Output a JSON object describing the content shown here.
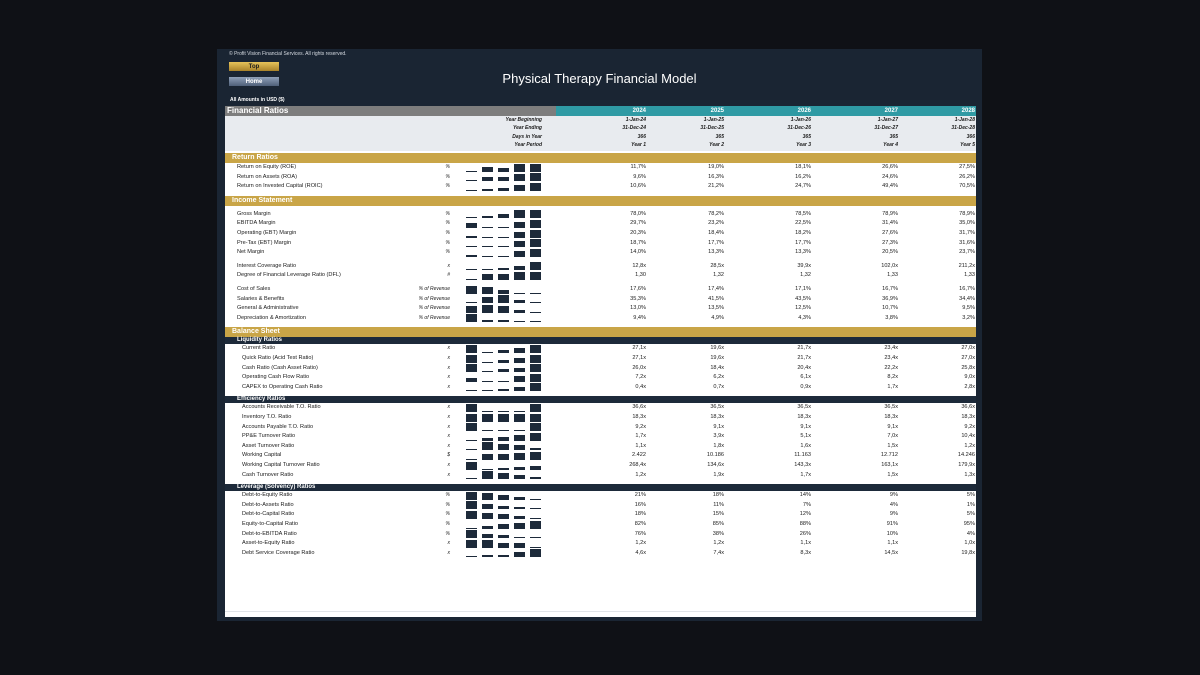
{
  "copyright": "© Profit Vision Financial Services. All rights reserved.",
  "buttons": {
    "top": "Top",
    "home": "Home"
  },
  "title": "Physical Therapy Financial Model",
  "units": "All Amounts in  USD ($)",
  "header": {
    "section_title": "Financial Ratios",
    "years": [
      "2024",
      "2025",
      "2026",
      "2027",
      "2028"
    ],
    "meta": [
      {
        "label": "Year Beginning",
        "values": [
          "1-Jan-24",
          "1-Jan-25",
          "1-Jan-26",
          "1-Jan-27",
          "1-Jan-28"
        ]
      },
      {
        "label": "Year Ending",
        "values": [
          "31-Dec-24",
          "31-Dec-25",
          "31-Dec-26",
          "31-Dec-27",
          "31-Dec-28"
        ]
      },
      {
        "label": "Days in Year",
        "values": [
          "366",
          "365",
          "365",
          "365",
          "366"
        ]
      },
      {
        "label": "Year Period",
        "values": [
          "Year 1",
          "Year 2",
          "Year 3",
          "Year 4",
          "Year 5"
        ]
      }
    ]
  },
  "sections": [
    {
      "type": "sec",
      "title": "Return Ratios"
    },
    {
      "type": "row",
      "label": "Return on Equity (ROE)",
      "unit": "%",
      "values": [
        "11,7%",
        "19,0%",
        "18,1%",
        "26,6%",
        "27,5%"
      ],
      "spark": [
        11.7,
        19.0,
        18.1,
        26.6,
        27.5
      ]
    },
    {
      "type": "row",
      "label": "Return on Assets (ROA)",
      "unit": "%",
      "values": [
        "9,6%",
        "16,3%",
        "16,2%",
        "24,6%",
        "26,2%"
      ],
      "spark": [
        9.6,
        16.3,
        16.2,
        24.6,
        26.2
      ]
    },
    {
      "type": "row",
      "label": "Return on Invested Capital (ROIC)",
      "unit": "%",
      "values": [
        "10,6%",
        "21,2%",
        "24,7%",
        "49,4%",
        "70,5%"
      ],
      "spark": [
        10.6,
        21.2,
        24.7,
        49.4,
        70.5
      ]
    },
    {
      "type": "gap"
    },
    {
      "type": "sec",
      "title": "Income Statement"
    },
    {
      "type": "gap"
    },
    {
      "type": "row",
      "label": "Gross Margin",
      "unit": "%",
      "values": [
        "78,0%",
        "78,2%",
        "78,5%",
        "78,9%",
        "78,9%"
      ],
      "spark": [
        78.0,
        78.2,
        78.5,
        78.9,
        78.9
      ]
    },
    {
      "type": "row",
      "label": "EBITDA Margin",
      "unit": "%",
      "values": [
        "29,7%",
        "23,2%",
        "22,5%",
        "31,4%",
        "35,0%"
      ],
      "spark": [
        29.7,
        23.2,
        22.5,
        31.4,
        35.0
      ]
    },
    {
      "type": "row",
      "label": "Operating (EBT) Margin",
      "unit": "%",
      "values": [
        "20,3%",
        "18,4%",
        "18,2%",
        "27,6%",
        "31,7%"
      ],
      "spark": [
        20.3,
        18.4,
        18.2,
        27.6,
        31.7
      ]
    },
    {
      "type": "row",
      "label": "Pre-Tax (EBT) Margin",
      "unit": "%",
      "values": [
        "18,7%",
        "17,7%",
        "17,7%",
        "27,3%",
        "31,6%"
      ],
      "spark": [
        18.7,
        17.7,
        17.7,
        27.3,
        31.6
      ]
    },
    {
      "type": "row",
      "label": "Net Margin",
      "unit": "%",
      "values": [
        "14,0%",
        "13,3%",
        "13,3%",
        "20,5%",
        "23,7%"
      ],
      "spark": [
        14.0,
        13.3,
        13.3,
        20.5,
        23.7
      ]
    },
    {
      "type": "gap"
    },
    {
      "type": "row",
      "label": "Interest Coverage Ratio",
      "unit": "x",
      "values": [
        "12,8x",
        "28,5x",
        "39,9x",
        "102,0x",
        "211,2x"
      ],
      "spark": [
        12.8,
        28.5,
        39.9,
        102.0,
        211.2
      ]
    },
    {
      "type": "row",
      "label": "Degree of Financial Leverage Ratio (DFL)",
      "unit": "#",
      "values": [
        "1,30",
        "1,32",
        "1,32",
        "1,33",
        "1,33"
      ],
      "spark": [
        1.3,
        1.32,
        1.32,
        1.33,
        1.33
      ]
    },
    {
      "type": "gap"
    },
    {
      "type": "row",
      "label": "Cost of Sales",
      "unit": "% of Revenue",
      "values": [
        "17,6%",
        "17,4%",
        "17,1%",
        "16,7%",
        "16,7%"
      ],
      "spark": [
        17.6,
        17.4,
        17.1,
        16.7,
        16.7
      ]
    },
    {
      "type": "row",
      "label": "Salaries & Benefits",
      "unit": "% of Revenue",
      "values": [
        "35,3%",
        "41,5%",
        "43,5%",
        "36,9%",
        "34,4%"
      ],
      "spark": [
        35.3,
        41.5,
        43.5,
        36.9,
        34.4
      ]
    },
    {
      "type": "row",
      "label": "General & Administrative",
      "unit": "% of Revenue",
      "values": [
        "13,0%",
        "13,5%",
        "12,5%",
        "10,7%",
        "9,5%"
      ],
      "spark": [
        13.0,
        13.5,
        12.5,
        10.7,
        9.5
      ]
    },
    {
      "type": "row",
      "label": "Depreciation & Amortization",
      "unit": "% of Revenue",
      "values": [
        "9,4%",
        "4,9%",
        "4,3%",
        "3,8%",
        "3,2%"
      ],
      "spark": [
        9.4,
        4.9,
        4.3,
        3.8,
        3.2
      ]
    },
    {
      "type": "gap"
    },
    {
      "type": "sec",
      "title": "Balance Sheet"
    },
    {
      "type": "sub",
      "title": "Liquidity Ratios"
    },
    {
      "type": "row",
      "l2": true,
      "label": "Current Ratio",
      "unit": "x",
      "values": [
        "27,1x",
        "19,6x",
        "21,7x",
        "23,4x",
        "27,0x"
      ],
      "spark": [
        27.1,
        19.6,
        21.7,
        23.4,
        27.0
      ]
    },
    {
      "type": "row",
      "l2": true,
      "label": "Quick Ratio (Acid Test Ratio)",
      "unit": "x",
      "values": [
        "27,1x",
        "19,6x",
        "21,7x",
        "23,4x",
        "27,0x"
      ],
      "spark": [
        27.1,
        19.6,
        21.7,
        23.4,
        27.0
      ]
    },
    {
      "type": "row",
      "l2": true,
      "label": "Cash Ratio (Cash Asset Ratio)",
      "unit": "x",
      "values": [
        "26,0x",
        "18,4x",
        "20,4x",
        "22,2x",
        "25,8x"
      ],
      "spark": [
        26.0,
        18.4,
        20.4,
        22.2,
        25.8
      ]
    },
    {
      "type": "row",
      "l2": true,
      "label": "Operating Cash Flow Ratio",
      "unit": "x",
      "values": [
        "7,2x",
        "6,2x",
        "6,1x",
        "8,2x",
        "9,0x"
      ],
      "spark": [
        7.2,
        6.2,
        6.1,
        8.2,
        9.0
      ]
    },
    {
      "type": "row",
      "l2": true,
      "label": "CAPEX to Operating Cash Ratio",
      "unit": "x",
      "values": [
        "0,4x",
        "0,7x",
        "0,9x",
        "1,7x",
        "2,8x"
      ],
      "spark": [
        0.4,
        0.7,
        0.9,
        1.7,
        2.8
      ]
    },
    {
      "type": "gap"
    },
    {
      "type": "sub",
      "title": "Efficiency Ratios"
    },
    {
      "type": "row",
      "l2": true,
      "label": "Accounts Receivable T.O. Ratio",
      "unit": "x",
      "values": [
        "36,6x",
        "36,5x",
        "36,5x",
        "36,5x",
        "36,6x"
      ],
      "spark": [
        36.6,
        36.5,
        36.5,
        36.5,
        36.6
      ]
    },
    {
      "type": "row",
      "l2": true,
      "label": "Inventory T.O. Ratio",
      "unit": "x",
      "values": [
        "18,3x",
        "18,3x",
        "18,3x",
        "18,3x",
        "18,3x"
      ],
      "spark": [
        18.3,
        18.3,
        18.3,
        18.3,
        18.3
      ]
    },
    {
      "type": "row",
      "l2": true,
      "label": "Accounts Payable T.O. Ratio",
      "unit": "x",
      "values": [
        "9,2x",
        "9,1x",
        "9,1x",
        "9,1x",
        "9,2x"
      ],
      "spark": [
        9.2,
        9.1,
        9.1,
        9.1,
        9.2
      ]
    },
    {
      "type": "row",
      "l2": true,
      "label": "PP&E Turnover Ratio",
      "unit": "x",
      "values": [
        "1,7x",
        "3,9x",
        "5,1x",
        "7,0x",
        "10,4x"
      ],
      "spark": [
        1.7,
        3.9,
        5.1,
        7.0,
        10.4
      ]
    },
    {
      "type": "row",
      "l2": true,
      "label": "Asset Turnover Ratio",
      "unit": "x",
      "values": [
        "1,1x",
        "1,8x",
        "1,6x",
        "1,5x",
        "1,2x"
      ],
      "spark": [
        1.1,
        1.8,
        1.6,
        1.5,
        1.2
      ]
    },
    {
      "type": "row",
      "l2": true,
      "label": "Working Capital",
      "unit": "$",
      "values": [
        "2.422",
        "10.186",
        "11.163",
        "12.712",
        "14.246"
      ],
      "spark": [
        2422,
        10186,
        11163,
        12712,
        14246
      ]
    },
    {
      "type": "row",
      "l2": true,
      "label": "Working Capital Turnover Ratio",
      "unit": "x",
      "values": [
        "268,4x",
        "134,6x",
        "143,3x",
        "163,1x",
        "179,9x"
      ],
      "spark": [
        268.4,
        134.6,
        143.3,
        163.1,
        179.9
      ]
    },
    {
      "type": "row",
      "l2": true,
      "label": "Cash Turnover Ratio",
      "unit": "x",
      "values": [
        "1,2x",
        "1,9x",
        "1,7x",
        "1,5x",
        "1,3x"
      ],
      "spark": [
        1.2,
        1.9,
        1.7,
        1.5,
        1.3
      ]
    },
    {
      "type": "gap"
    },
    {
      "type": "sub",
      "title": "Leverage (Solvency) Ratios"
    },
    {
      "type": "row",
      "l2": true,
      "label": "Debt-to-Equity Ratio",
      "unit": "%",
      "values": [
        "21%",
        "18%",
        "14%",
        "9%",
        "5%"
      ],
      "spark": [
        21,
        18,
        14,
        9,
        5
      ]
    },
    {
      "type": "row",
      "l2": true,
      "label": "Debt-to-Assets Ratio",
      "unit": "%",
      "values": [
        "16%",
        "11%",
        "7%",
        "4%",
        "1%"
      ],
      "spark": [
        16,
        11,
        7,
        4,
        1
      ]
    },
    {
      "type": "row",
      "l2": true,
      "label": "Debt-to-Capital Ratio",
      "unit": "%",
      "values": [
        "18%",
        "15%",
        "12%",
        "9%",
        "5%"
      ],
      "spark": [
        18,
        15,
        12,
        9,
        5
      ]
    },
    {
      "type": "row",
      "l2": true,
      "label": "Equity-to-Capital Ratio",
      "unit": "%",
      "values": [
        "82%",
        "85%",
        "88%",
        "91%",
        "95%"
      ],
      "spark": [
        82,
        85,
        88,
        91,
        95
      ]
    },
    {
      "type": "row",
      "l2": true,
      "label": "Debt-to-EBITDA Ratio",
      "unit": "%",
      "values": [
        "76%",
        "38%",
        "26%",
        "10%",
        "4%"
      ],
      "spark": [
        76,
        38,
        26,
        10,
        4
      ]
    },
    {
      "type": "row",
      "l2": true,
      "label": "Asset-to-Equity Ratio",
      "unit": "x",
      "values": [
        "1,2x",
        "1,2x",
        "1,1x",
        "1,1x",
        "1,0x"
      ],
      "spark": [
        1.2,
        1.2,
        1.1,
        1.1,
        1.0
      ]
    },
    {
      "type": "row",
      "l2": true,
      "label": "Debt Service Coverage Ratio",
      "unit": "x",
      "values": [
        "4,6x",
        "7,4x",
        "8,3x",
        "14,5x",
        "19,8x"
      ],
      "spark": [
        4.6,
        7.4,
        8.3,
        14.5,
        19.8
      ]
    }
  ]
}
